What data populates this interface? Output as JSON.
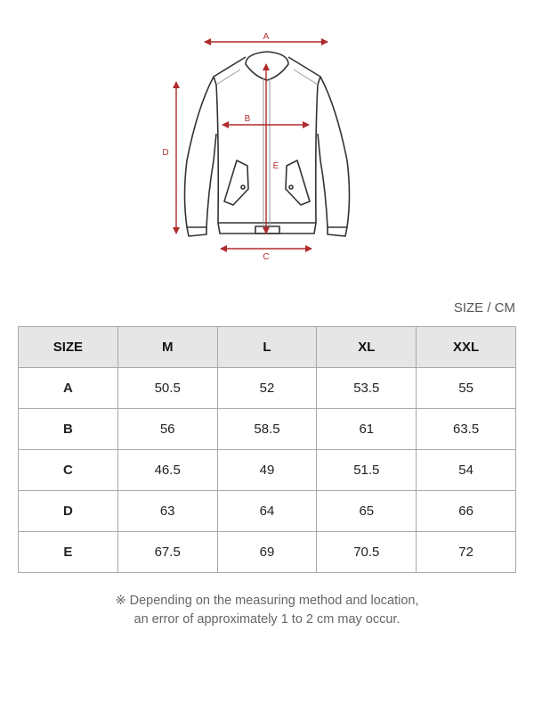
{
  "diagram": {
    "labels": {
      "a": "A",
      "b": "B",
      "c": "C",
      "d": "D",
      "e": "E"
    },
    "measure_color": "#b02a2a"
  },
  "unit_label": "SIZE / CM",
  "table": {
    "headers": [
      "SIZE",
      "M",
      "L",
      "XL",
      "XXL"
    ],
    "rows": [
      {
        "label": "A",
        "values": [
          "50.5",
          "52",
          "53.5",
          "55"
        ]
      },
      {
        "label": "B",
        "values": [
          "56",
          "58.5",
          "61",
          "63.5"
        ]
      },
      {
        "label": "C",
        "values": [
          "46.5",
          "49",
          "51.5",
          "54"
        ]
      },
      {
        "label": "D",
        "values": [
          "63",
          "64",
          "65",
          "66"
        ]
      },
      {
        "label": "E",
        "values": [
          "67.5",
          "69",
          "70.5",
          "72"
        ]
      }
    ]
  },
  "note": {
    "line1": "※ Depending on the measuring method and location,",
    "line2": "an error of approximately 1 to 2 cm may occur."
  }
}
